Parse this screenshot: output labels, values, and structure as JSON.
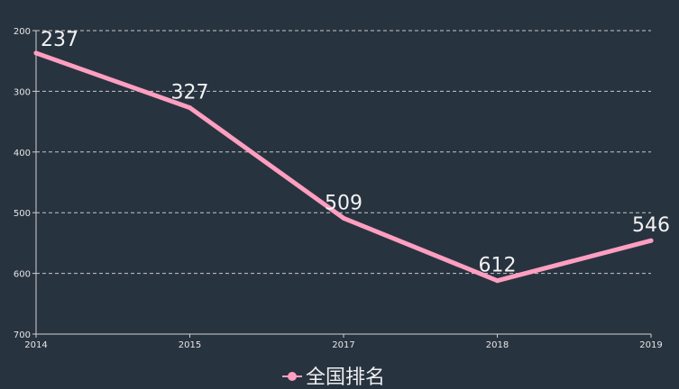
{
  "chart_data": {
    "type": "line",
    "categories": [
      "2014",
      "2015",
      "2017",
      "2018",
      "2019"
    ],
    "series": [
      {
        "name": "全国排名",
        "values": [
          237,
          327,
          509,
          612,
          546
        ],
        "color": "#ff9fc0"
      }
    ],
    "ylim": [
      200,
      700
    ],
    "y_inverted": true,
    "yticks": [
      200,
      300,
      400,
      500,
      600,
      700
    ],
    "grid": true,
    "data_labels": true,
    "legend": "bottom-center",
    "background": "#283340"
  }
}
